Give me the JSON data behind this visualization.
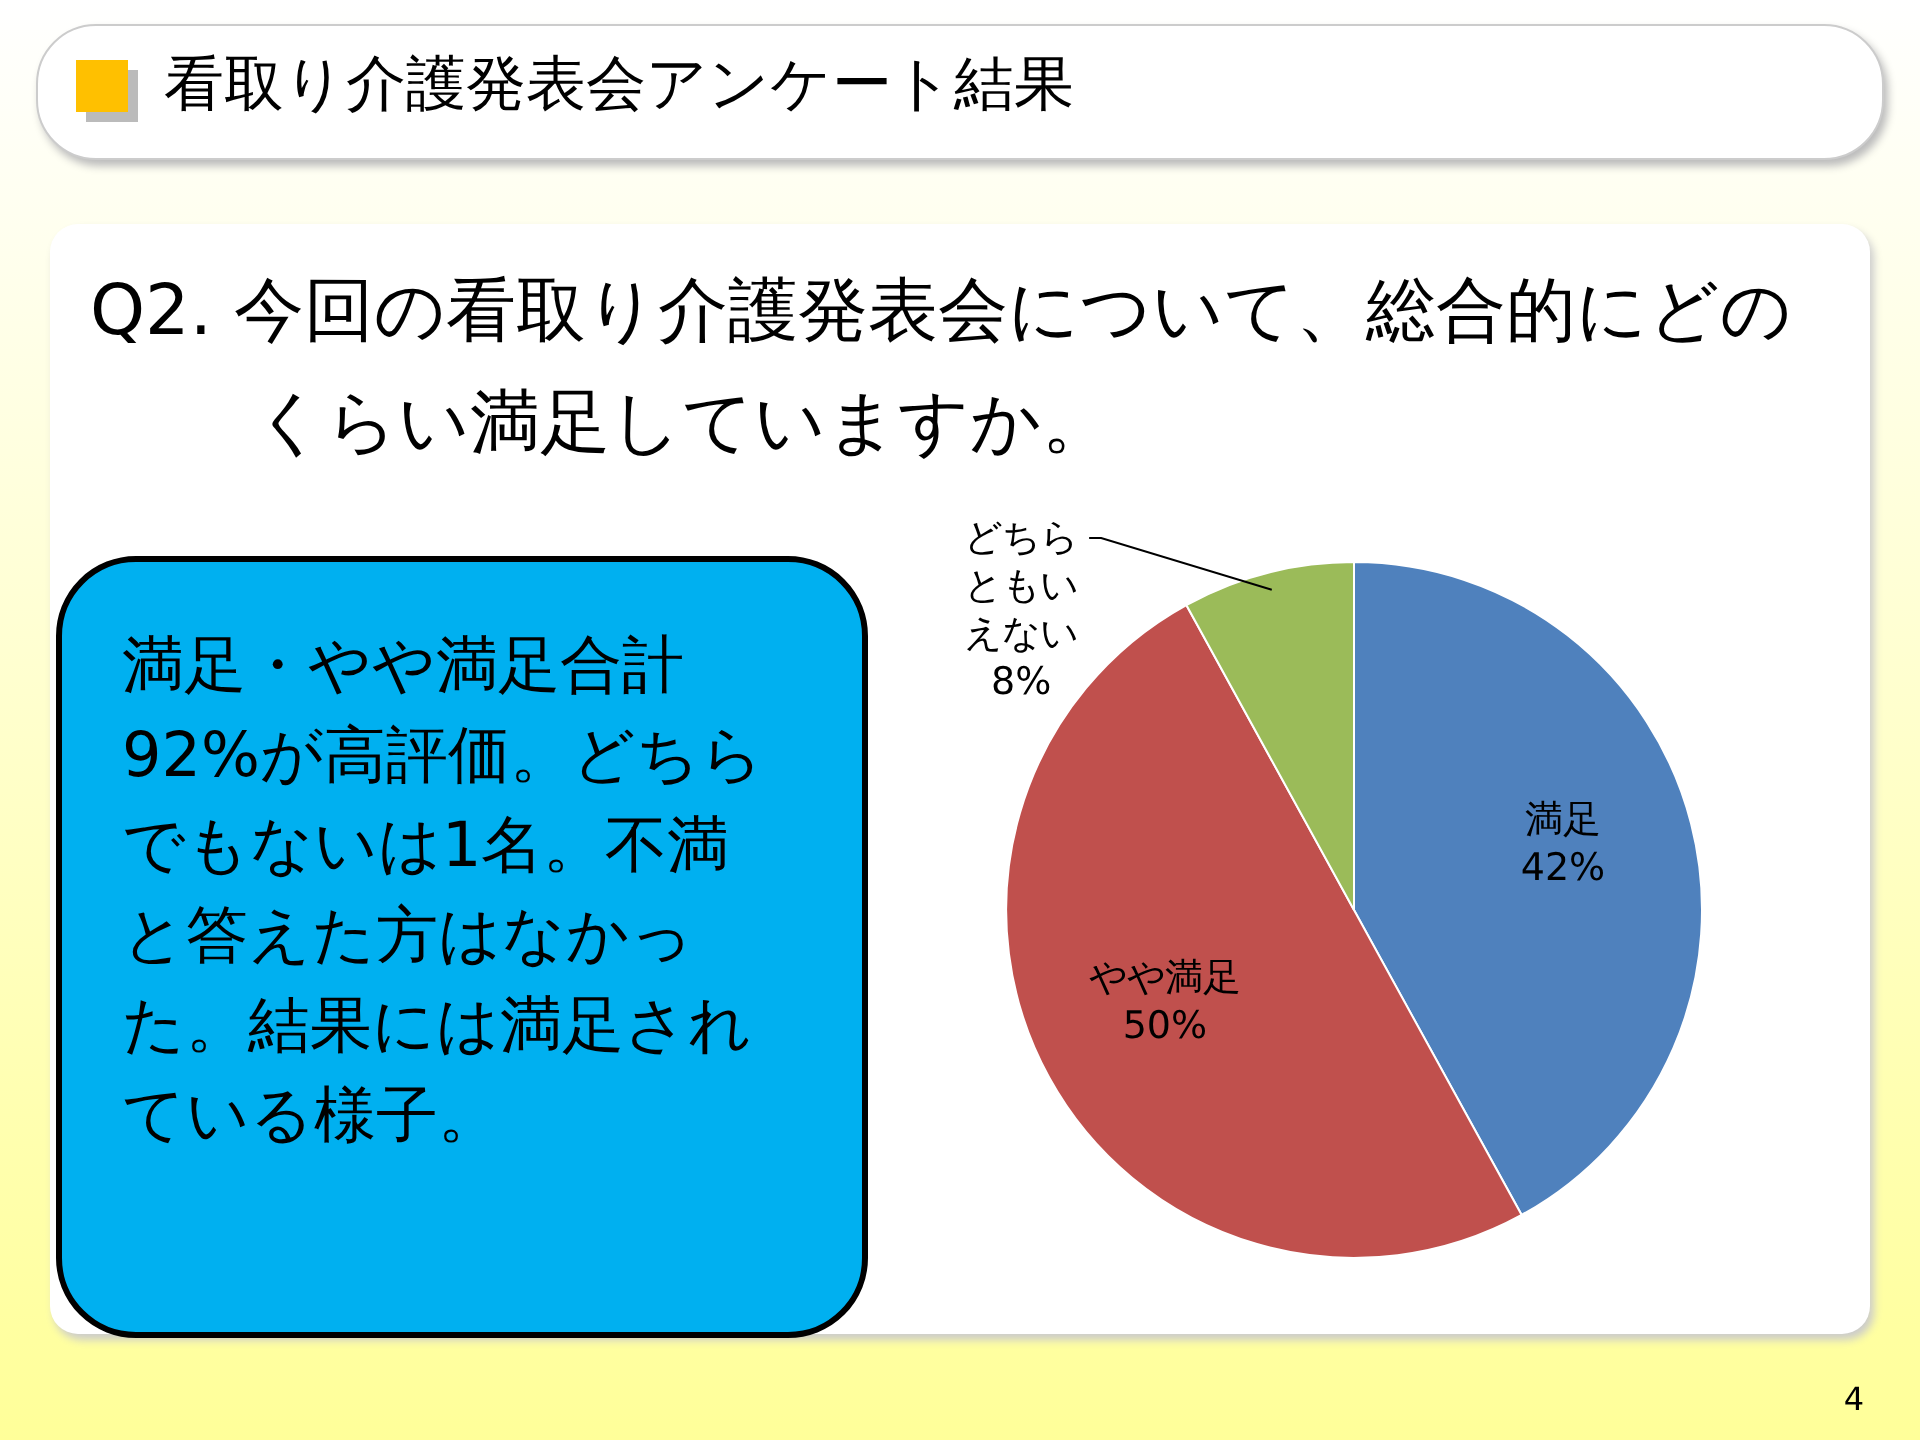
{
  "chart_data": {
    "type": "pie",
    "title": "看取り介護発表会アンケート結果",
    "subtitle": "Q2. 今回の看取り介護発表会について、総合的にどのくらい満足していますか。",
    "categories": [
      "満足",
      "やや満足",
      "どちらともいえない"
    ],
    "values": [
      42,
      50,
      8
    ],
    "colors": [
      "#4f81bd",
      "#c0504d",
      "#9bbb59"
    ],
    "value_labels": [
      "42%",
      "50%",
      "8%"
    ],
    "annotations": [
      "満足・やや満足合計92%が高評価。どちらでもないは1名。不満と答えた方はなかった。結果には満足されている様子。",
      "4"
    ]
  }
}
